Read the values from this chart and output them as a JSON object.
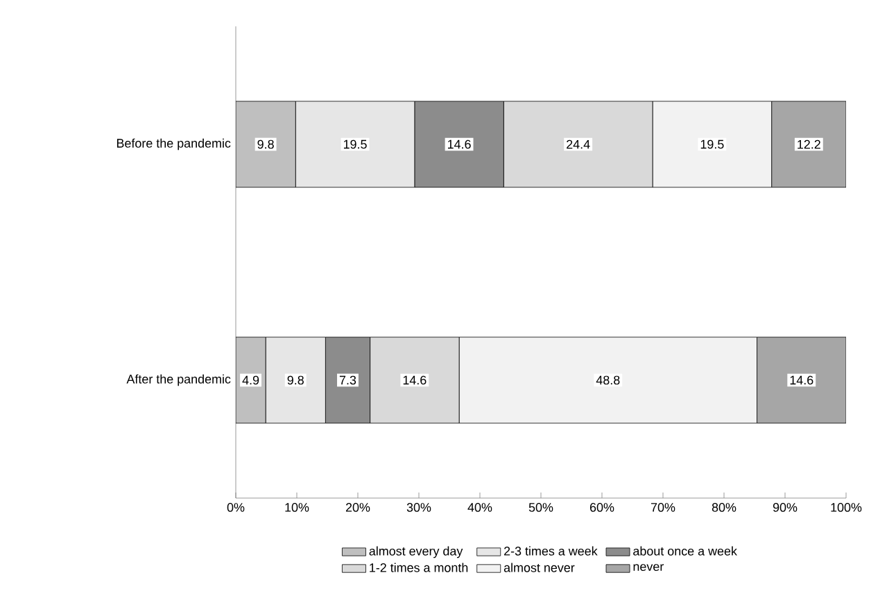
{
  "chart_data": {
    "type": "bar",
    "orientation": "horizontal",
    "stacked": true,
    "categories": [
      "Before the pandemic",
      "After the pandemic"
    ],
    "series": [
      {
        "name": "almost every day",
        "color": "#bfbfbf",
        "values": [
          9.8,
          4.9
        ]
      },
      {
        "name": "2-3 times a week",
        "color": "#e6e6e6",
        "values": [
          19.5,
          9.8
        ]
      },
      {
        "name": "about once a week",
        "color": "#8c8c8c",
        "values": [
          14.6,
          7.3
        ]
      },
      {
        "name": "1-2 times a month",
        "color": "#d9d9d9",
        "values": [
          24.4,
          14.6
        ]
      },
      {
        "name": "almost never",
        "color": "#f2f2f2",
        "values": [
          19.5,
          48.8
        ]
      },
      {
        "name": "never",
        "color": "#a6a6a6",
        "values": [
          12.2,
          14.6
        ]
      }
    ],
    "xlim": [
      0,
      100
    ],
    "xticks": [
      {
        "value": 0,
        "label": "0%"
      },
      {
        "value": 10,
        "label": "10%"
      },
      {
        "value": 20,
        "label": "20%"
      },
      {
        "value": 30,
        "label": "30%"
      },
      {
        "value": 40,
        "label": "40%"
      },
      {
        "value": 50,
        "label": "50%"
      },
      {
        "value": 60,
        "label": "60%"
      },
      {
        "value": 70,
        "label": "70%"
      },
      {
        "value": 80,
        "label": "80%"
      },
      {
        "value": 90,
        "label": "90%"
      },
      {
        "value": 100,
        "label": "100%"
      }
    ],
    "data_labels": true,
    "legend": "bottom",
    "grid": false
  }
}
